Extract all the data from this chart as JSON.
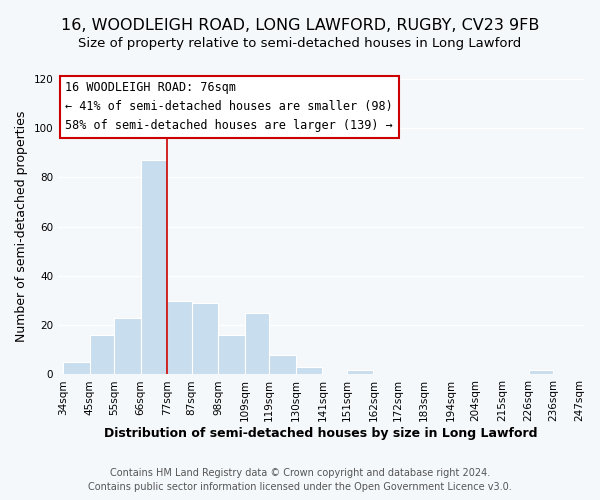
{
  "title": "16, WOODLEIGH ROAD, LONG LAWFORD, RUGBY, CV23 9FB",
  "subtitle": "Size of property relative to semi-detached houses in Long Lawford",
  "xlabel": "Distribution of semi-detached houses by size in Long Lawford",
  "ylabel": "Number of semi-detached properties",
  "footer_line1": "Contains HM Land Registry data © Crown copyright and database right 2024.",
  "footer_line2": "Contains public sector information licensed under the Open Government Licence v3.0.",
  "bar_edges": [
    34,
    45,
    55,
    66,
    77,
    87,
    98,
    109,
    119,
    130,
    141,
    151,
    162,
    172,
    183,
    194,
    204,
    215,
    226,
    236,
    247
  ],
  "bar_heights": [
    5,
    16,
    23,
    87,
    30,
    29,
    16,
    25,
    8,
    3,
    0,
    2,
    0,
    0,
    0,
    0,
    0,
    0,
    2,
    0
  ],
  "bar_color": "#c8dded",
  "bar_edge_color": "#ffffff",
  "bar_linewidth": 0.8,
  "vline_x": 77,
  "vline_color": "#cc0000",
  "vline_linewidth": 1.2,
  "annotation_title": "16 WOODLEIGH ROAD: 76sqm",
  "annotation_line1": "← 41% of semi-detached houses are smaller (98)",
  "annotation_line2": "58% of semi-detached houses are larger (139) →",
  "annotation_box_color": "#ffffff",
  "annotation_box_edge": "#cc0000",
  "ylim": [
    0,
    120
  ],
  "yticks": [
    0,
    20,
    40,
    60,
    80,
    100,
    120
  ],
  "background_color": "#f5f8fb",
  "plot_background": "#f5f8fb",
  "grid_color": "#ffffff",
  "title_fontsize": 11.5,
  "subtitle_fontsize": 9.5,
  "tick_label_fontsize": 7.5,
  "axis_label_fontsize": 9,
  "annotation_fontsize": 8.5,
  "footer_fontsize": 7
}
